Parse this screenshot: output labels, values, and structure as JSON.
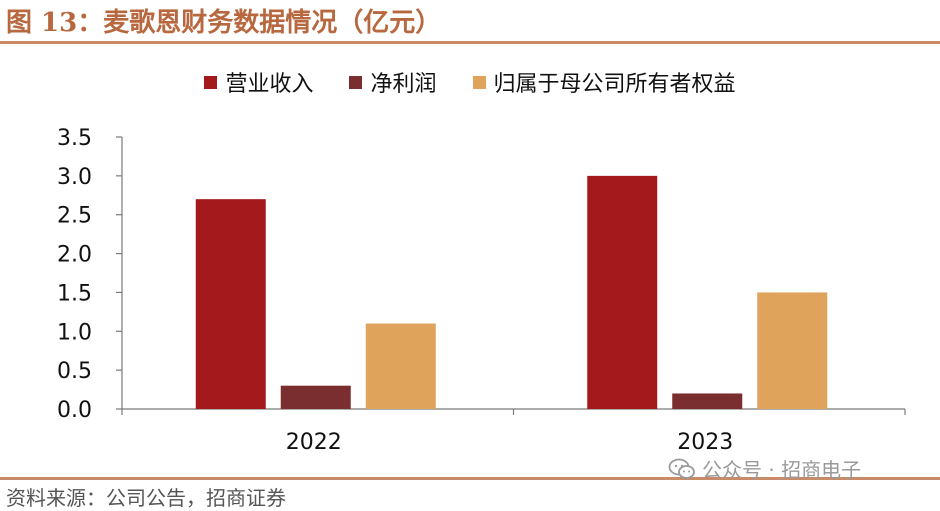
{
  "header": {
    "title": "图 13：麦歌恩财务数据情况（亿元）"
  },
  "footer": {
    "source": "资料来源：公司公告，招商证券",
    "watermark": "公众号 · 招商电子"
  },
  "chart_data": {
    "type": "bar",
    "categories": [
      "2022",
      "2023"
    ],
    "series": [
      {
        "name": "营业收入",
        "color": "#a3191c",
        "values": [
          2.7,
          3.0
        ]
      },
      {
        "name": "净利润",
        "color": "#7b2e2f",
        "values": [
          0.3,
          0.2
        ]
      },
      {
        "name": "归属于母公司所有者权益",
        "color": "#dfa35c",
        "values": [
          1.1,
          1.5
        ]
      }
    ],
    "ylim": [
      0,
      3.5
    ],
    "yticks": [
      "0.0",
      "0.5",
      "1.0",
      "1.5",
      "2.0",
      "2.5",
      "3.0",
      "3.5"
    ],
    "grid": false,
    "legend_position": "top"
  }
}
